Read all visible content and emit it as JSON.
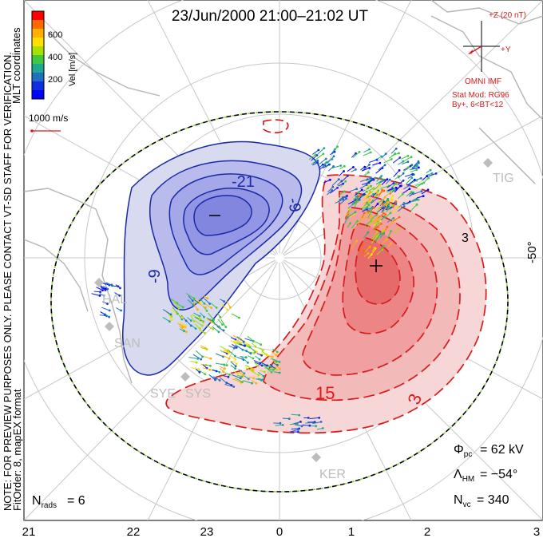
{
  "title": "23/Jun/2000 21:00–21:02 UT",
  "colorbar": {
    "label": "Vel [m/s]",
    "ticks": [
      "600",
      "400",
      "200"
    ],
    "colors": [
      "#ff0000",
      "#ff6a00",
      "#ffb000",
      "#ffe000",
      "#a8e000",
      "#40c840",
      "#20a890",
      "#2070c0",
      "#1030e0",
      "#0000ff"
    ]
  },
  "ref_vector_label": "1000 m/s",
  "side_notes": {
    "coords": "MLT coordinates",
    "note": "NOTE: FOR PREVIEW PURPOSES ONLY.  PLEASE CONTACT VT-SD STAFF FOR VERIFICATION.",
    "fit": "FitOrder: 8,  mapEX format"
  },
  "imf": {
    "scale": "+Z (20 nT)",
    "y": "+Y",
    "source": "OMNI IMF",
    "model": "Stat Mod: RG96",
    "model_params": "By+, 6<BT<12"
  },
  "lat_label": "-50°",
  "contours": {
    "neg1": "-21",
    "neg2": "-9",
    "neg3": "-9",
    "pos1": "15",
    "pos2": "3",
    "pos3": "3"
  },
  "stations": [
    "HAL",
    "SAN",
    "SYE",
    "SYS",
    "TIG",
    "KER"
  ],
  "stats": {
    "phi_label": "Φ",
    "phi_sub": "pc",
    "phi_value": "= 62 kV",
    "lambda_label": "Λ",
    "lambda_sub": "HM",
    "lambda_value": "= −54°",
    "nvc_label": "N",
    "nvc_sub": "vc",
    "nvc_value": "= 340",
    "nrads_label": "N",
    "nrads_sub": "rads",
    "nrads_value": "= 6"
  },
  "mlt_ticks": [
    "21",
    "22",
    "23",
    "0",
    "1",
    "2",
    "3"
  ],
  "colors": {
    "negative": "#1a2aa8",
    "positive": "#d81c1c",
    "grid": "#c8c8c8",
    "land": "#b4b4b4",
    "boundary_green": "#8ad23c"
  }
}
